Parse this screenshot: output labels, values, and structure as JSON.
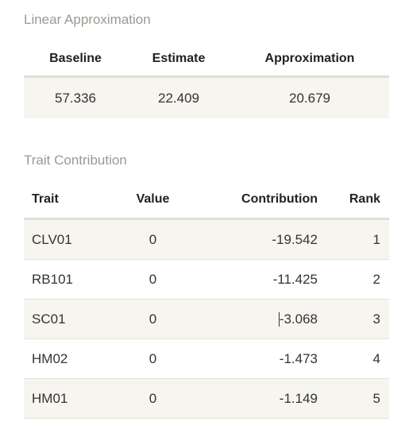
{
  "linear_approximation": {
    "title": "Linear Approximation",
    "headers": [
      "Baseline",
      "Estimate",
      "Approximation"
    ],
    "values": [
      "57.336",
      "22.409",
      "20.679"
    ]
  },
  "trait_contribution": {
    "title": "Trait Contribution",
    "headers": [
      "Trait",
      "Value",
      "Contribution",
      "Rank"
    ],
    "rows": [
      {
        "trait": "CLV01",
        "value": "0",
        "contribution": "-19.542",
        "rank": "1"
      },
      {
        "trait": "RB101",
        "value": "0",
        "contribution": "-11.425",
        "rank": "2"
      },
      {
        "trait": "SC01",
        "value": "0",
        "contribution": "-3.068",
        "rank": "3"
      },
      {
        "trait": "HM02",
        "value": "0",
        "contribution": "-1.473",
        "rank": "4"
      },
      {
        "trait": "HM01",
        "value": "0",
        "contribution": "-1.149",
        "rank": "5"
      }
    ]
  }
}
